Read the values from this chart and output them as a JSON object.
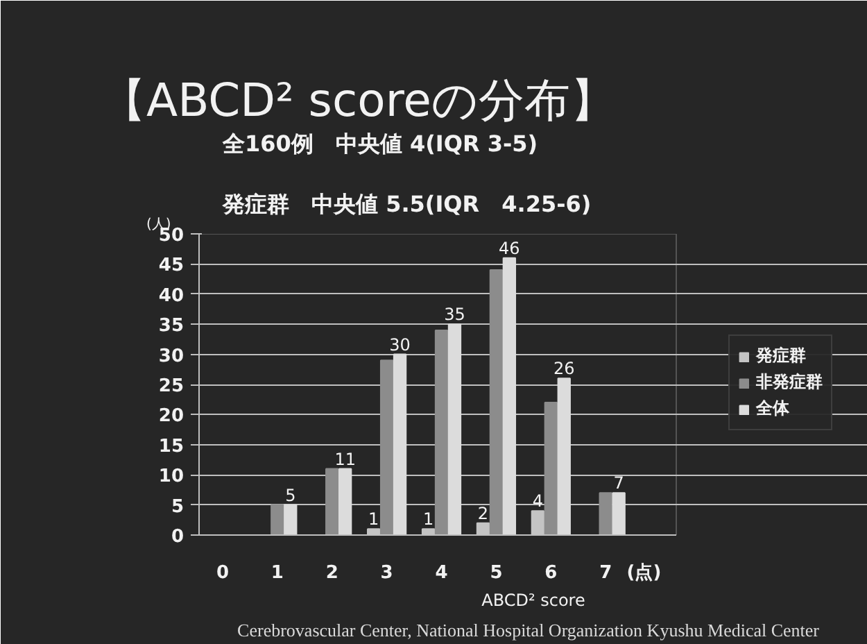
{
  "chart_data": {
    "type": "bar",
    "title": "【ABCD² scoreの分布】",
    "subtitle": "全160例　中央値 4(IQR 3-5)\n発症群　中央値 5.5(IQR　4.25-6)",
    "xlabel": "ABCD² score",
    "ylabel": "(人)",
    "annotations": [
      "(点)",
      "Cerebrovascular Center, National Hospital Organization Kyushu Medical Center"
    ],
    "categories": [
      "0",
      "1",
      "2",
      "3",
      "4",
      "5",
      "6",
      "7"
    ],
    "series": [
      {
        "name": "発症群",
        "color": "#c4c4c4",
        "values": [
          0,
          0,
          0,
          1,
          1,
          2,
          4,
          0
        ],
        "value_labels": [
          null,
          null,
          null,
          "1",
          "1",
          "2",
          "4",
          null
        ]
      },
      {
        "name": "非発症群",
        "color": "#8c8c8c",
        "values": [
          0,
          5,
          11,
          29,
          34,
          44,
          22,
          7
        ]
      },
      {
        "name": "全体",
        "color": "#dcdcdc",
        "values": [
          0,
          5,
          11,
          30,
          35,
          46,
          26,
          7
        ],
        "value_labels": [
          null,
          "5",
          "11",
          "30",
          "35",
          "46",
          "26",
          "7"
        ]
      }
    ],
    "ylim": [
      0,
      50
    ],
    "yticks": [
      0,
      5,
      10,
      15,
      20,
      25,
      30,
      35,
      40,
      45,
      50
    ],
    "grid": "y",
    "legend": "right"
  }
}
